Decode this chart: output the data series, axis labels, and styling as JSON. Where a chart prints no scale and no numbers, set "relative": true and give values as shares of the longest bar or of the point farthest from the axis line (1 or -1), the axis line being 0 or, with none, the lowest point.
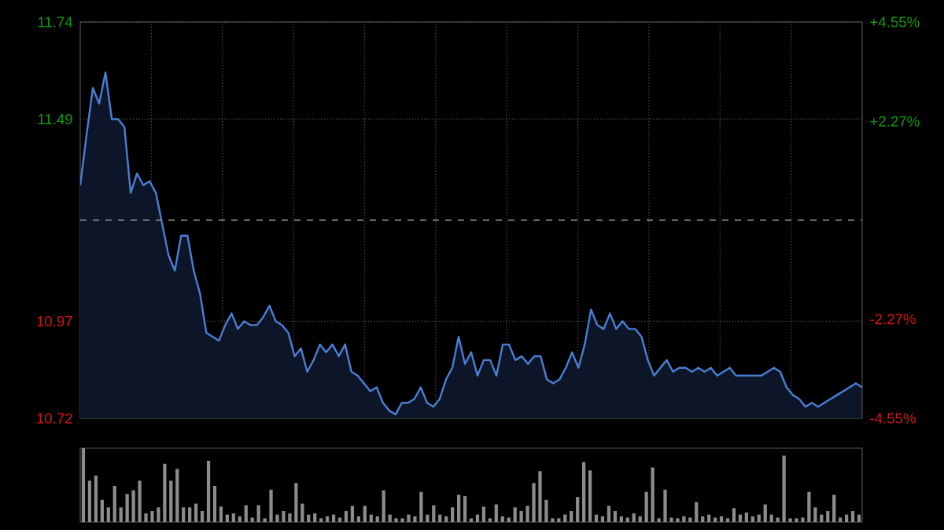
{
  "chart_data": [
    {
      "type": "area",
      "categories": [
        null,
        null,
        null,
        null,
        null,
        null,
        null,
        null,
        null,
        null,
        null,
        null,
        null,
        null,
        null,
        null,
        null,
        null,
        null,
        null,
        null,
        null,
        null,
        null,
        null,
        null,
        null,
        null,
        null,
        null,
        null,
        null,
        null,
        null,
        null,
        null,
        null,
        null,
        null,
        null,
        null,
        null,
        null,
        null,
        null,
        null,
        null,
        null,
        null,
        null,
        null,
        null,
        null,
        null,
        null,
        null,
        null,
        null,
        null,
        null,
        null,
        null,
        null,
        null,
        null,
        null,
        null,
        null,
        null,
        null,
        null,
        null,
        null,
        null,
        null,
        null,
        null,
        null,
        null,
        null,
        null,
        null,
        null,
        null,
        null,
        null,
        null,
        null,
        null,
        null,
        null,
        null,
        null,
        null,
        null,
        null,
        null,
        null,
        null,
        null,
        null,
        null,
        null,
        null,
        null,
        null,
        null,
        null,
        null,
        null,
        null,
        null,
        null,
        null,
        null,
        null,
        null,
        null,
        null,
        null,
        null,
        null,
        null,
        null,
        null
      ],
      "series": [
        {
          "color": "#4a7fd4",
          "values": [
            11.32,
            11.45,
            11.57,
            11.53,
            11.61,
            11.49,
            11.49,
            11.47,
            11.3,
            11.35,
            11.32,
            11.33,
            11.3,
            11.22,
            11.14,
            11.1,
            11.19,
            11.19,
            11.1,
            11.04,
            10.94,
            10.93,
            10.92,
            10.96,
            10.99,
            10.95,
            10.97,
            10.96,
            10.96,
            10.98,
            11.01,
            10.97,
            10.96,
            10.94,
            10.88,
            10.9,
            10.84,
            10.87,
            10.91,
            10.89,
            10.91,
            10.88,
            10.91,
            10.84,
            10.83,
            10.81,
            10.79,
            10.8,
            10.76,
            10.74,
            10.73,
            10.76,
            10.76,
            10.77,
            10.8,
            10.76,
            10.75,
            10.77,
            10.82,
            10.85,
            10.93,
            10.86,
            10.89,
            10.83,
            10.87,
            10.87,
            10.83,
            10.91,
            10.91,
            10.87,
            10.88,
            10.86,
            10.88,
            10.88,
            10.82,
            10.81,
            10.82,
            10.85,
            10.89,
            10.85,
            10.91,
            11.0,
            10.96,
            10.95,
            10.99,
            10.95,
            10.97,
            10.95,
            10.95,
            10.93,
            10.87,
            10.83,
            10.85,
            10.87,
            10.84,
            10.85,
            10.85,
            10.84,
            10.85,
            10.84,
            10.85,
            10.83,
            10.84,
            10.85,
            10.83,
            10.83,
            10.83,
            10.83,
            10.83,
            10.84,
            10.85,
            10.84,
            10.8,
            10.78,
            10.77,
            10.75,
            10.76,
            10.75,
            10.76,
            10.77,
            10.78,
            10.79,
            10.8,
            10.81,
            10.8
          ]
        }
      ],
      "ylim": [
        10.72,
        11.74
      ],
      "yticks": [
        10.72,
        10.97,
        11.49,
        11.74
      ],
      "y2lim": [
        -4.55,
        4.55
      ],
      "y2ticks": [
        {
          "value": -4.55,
          "label": "-4.55%"
        },
        {
          "value": -2.27,
          "label": "-2.27%"
        },
        {
          "value": 2.27,
          "label": "+2.27%"
        },
        {
          "value": 4.55,
          "label": "+4.55%"
        }
      ],
      "grid": true,
      "ref_lines": [
        {
          "axis": "y",
          "value": 11.23
        }
      ]
    },
    {
      "type": "bar",
      "relative": true,
      "categories": [
        null,
        null,
        null,
        null,
        null,
        null,
        null,
        null,
        null,
        null,
        null,
        null,
        null,
        null,
        null,
        null,
        null,
        null,
        null,
        null,
        null,
        null,
        null,
        null,
        null,
        null,
        null,
        null,
        null,
        null,
        null,
        null,
        null,
        null,
        null,
        null,
        null,
        null,
        null,
        null,
        null,
        null,
        null,
        null,
        null,
        null,
        null,
        null,
        null,
        null,
        null,
        null,
        null,
        null,
        null,
        null,
        null,
        null,
        null,
        null,
        null,
        null,
        null,
        null,
        null,
        null,
        null,
        null,
        null,
        null,
        null,
        null,
        null,
        null,
        null,
        null,
        null,
        null,
        null,
        null,
        null,
        null,
        null,
        null,
        null,
        null,
        null,
        null,
        null,
        null,
        null,
        null,
        null,
        null,
        null,
        null,
        null,
        null,
        null,
        null,
        null,
        null,
        null,
        null,
        null,
        null,
        null,
        null,
        null,
        null,
        null,
        null,
        null,
        null,
        null,
        null,
        null,
        null,
        null,
        null,
        null,
        null,
        null,
        null,
        null
      ],
      "values": [
        1.0,
        0.56,
        0.63,
        0.3,
        0.2,
        0.49,
        0.2,
        0.38,
        0.43,
        0.56,
        0.12,
        0.15,
        0.2,
        0.79,
        0.56,
        0.72,
        0.2,
        0.2,
        0.25,
        0.15,
        0.83,
        0.49,
        0.21,
        0.1,
        0.12,
        0.08,
        0.23,
        0.06,
        0.23,
        0.05,
        0.44,
        0.1,
        0.15,
        0.12,
        0.53,
        0.25,
        0.1,
        0.12,
        0.05,
        0.08,
        0.1,
        0.06,
        0.15,
        0.22,
        0.08,
        0.22,
        0.1,
        0.08,
        0.43,
        0.1,
        0.05,
        0.05,
        0.1,
        0.08,
        0.41,
        0.1,
        0.23,
        0.1,
        0.08,
        0.2,
        0.37,
        0.35,
        0.05,
        0.1,
        0.21,
        0.05,
        0.24,
        0.08,
        0.06,
        0.2,
        0.15,
        0.22,
        0.53,
        0.69,
        0.3,
        0.05,
        0.05,
        0.1,
        0.15,
        0.34,
        0.81,
        0.7,
        0.1,
        0.08,
        0.22,
        0.15,
        0.08,
        0.06,
        0.12,
        0.08,
        0.41,
        0.74,
        0.05,
        0.44,
        0.06,
        0.05,
        0.08,
        0.06,
        0.27,
        0.08,
        0.1,
        0.06,
        0.08,
        0.05,
        0.19,
        0.1,
        0.13,
        0.08,
        0.1,
        0.24,
        0.1,
        0.06,
        0.9,
        0.05,
        0.05,
        0.06,
        0.41,
        0.2,
        0.1,
        0.15,
        0.37,
        0.06,
        0.1,
        0.15,
        0.1
      ],
      "color": "#8c8c8c"
    }
  ]
}
